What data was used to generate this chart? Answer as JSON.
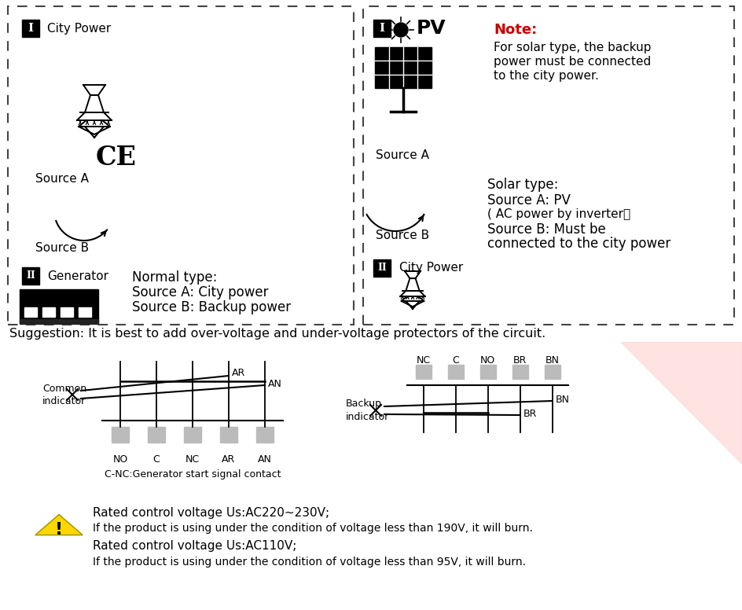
{
  "bg_color": "#ffffff",
  "suggestion_text": "Suggestion: It is best to add over-voltage and under-voltage protectors of the circuit.",
  "note_color": "#cc0000",
  "warning_yellow": "#FFD700",
  "pink_triangle_color": "#ffcccc",
  "warning_line1a": "Rated control voltage Us:AC220~230V;",
  "warning_line1b": "If the product is using under the condition of voltage less than 190V, it will burn.",
  "warning_line2a": "Rated control voltage Us:AC110V;",
  "warning_line2b": "If the product is using under the condition of voltage less than 95V, it will burn.",
  "left_terminals": [
    "NO",
    "C",
    "NC",
    "AR",
    "AN"
  ],
  "right_terminals": [
    "NC",
    "C",
    "NO",
    "BR",
    "BN"
  ],
  "wiring_caption": "C-NC:Generator start signal contact"
}
